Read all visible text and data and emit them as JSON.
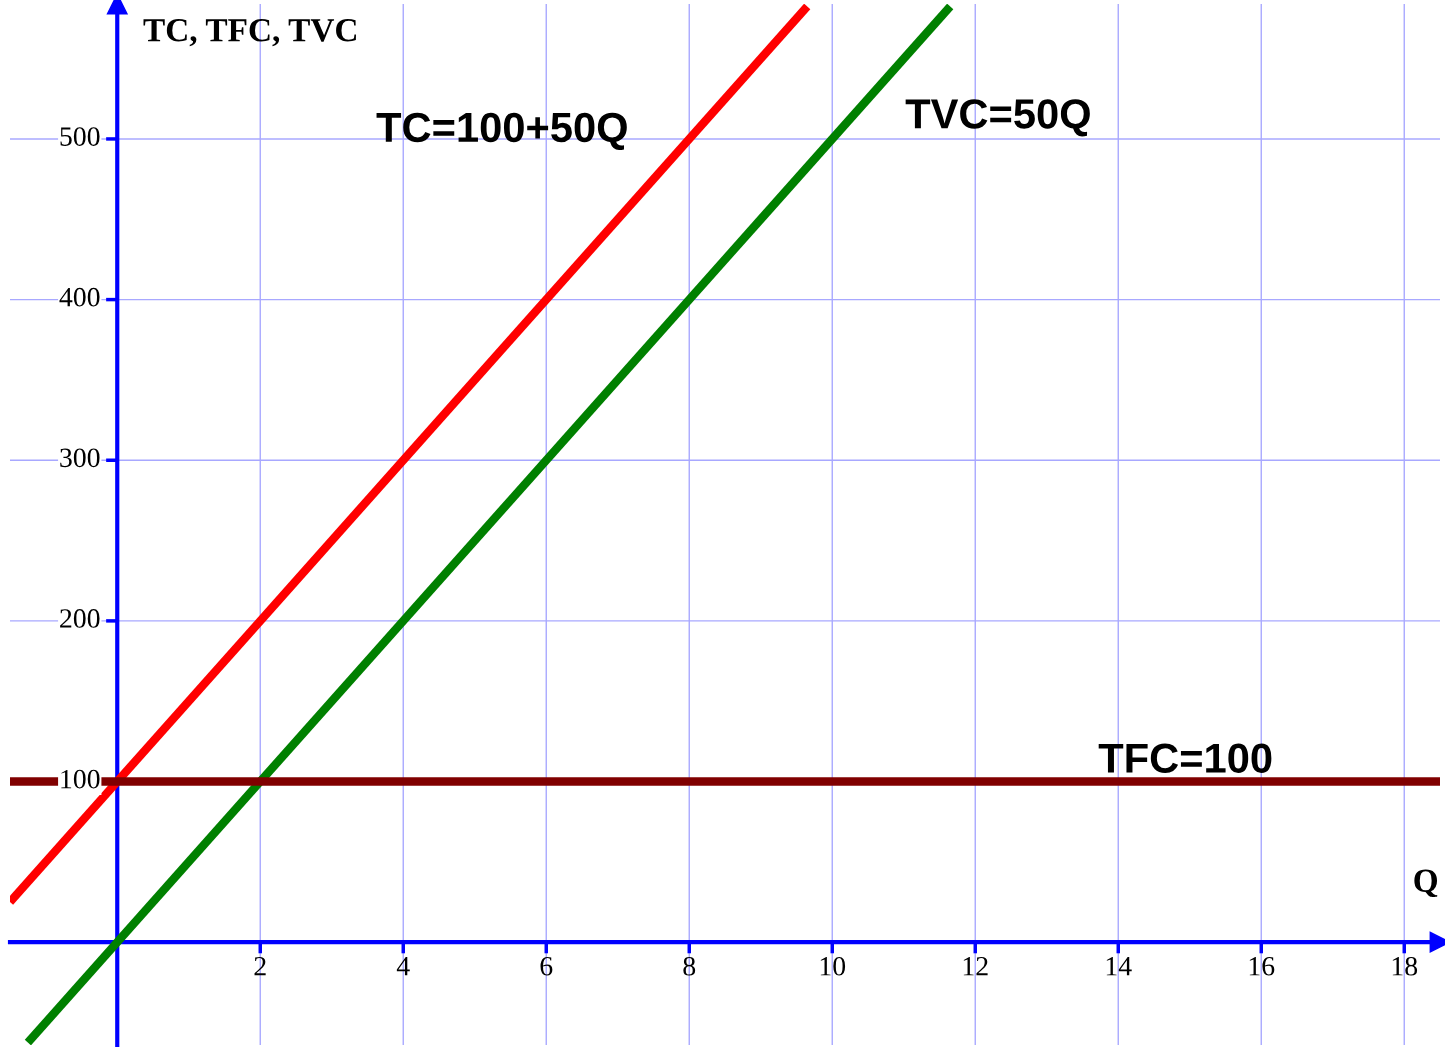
{
  "chart_data": {
    "type": "line",
    "xlabel": "Q",
    "ylabel": "TC, TFC, TVC",
    "xlim": [
      -1.5,
      18.5
    ],
    "ylim": [
      -64,
      584
    ],
    "xticks": [
      2,
      4,
      6,
      8,
      10,
      12,
      14,
      16,
      18
    ],
    "yticks": [
      100,
      200,
      300,
      400,
      500
    ],
    "grid": true,
    "line_style": "solid",
    "marker": "none",
    "series": [
      {
        "color": "#ff0000",
        "x": [
          -1.5,
          9.65
        ],
        "values": [
          25,
          582.5
        ]
      },
      {
        "color": "#008000",
        "x": [
          -1.25,
          11.65
        ],
        "values": [
          -62.5,
          582.5
        ]
      },
      {
        "color": "#800000",
        "x": [
          -1.5,
          18.5
        ],
        "values": [
          100,
          100
        ]
      }
    ],
    "annotations": [
      "TC=100+50Q",
      "TVC=50Q",
      "TFC=100"
    ]
  }
}
